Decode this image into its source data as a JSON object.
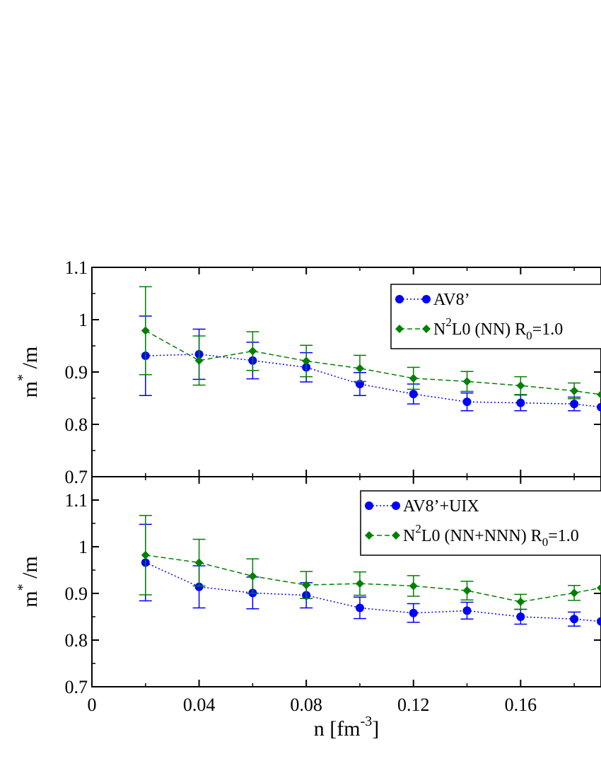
{
  "chart_data": [
    {
      "type": "scatter",
      "panel": "top",
      "xlim": [
        0,
        0.19
      ],
      "ylim": [
        0.7,
        1.1
      ],
      "yticks": [
        0.7,
        0.8,
        0.9,
        1.0,
        1.1
      ],
      "ytick_labels": [
        "0.7",
        "0.8",
        "0.9",
        "1",
        "1.1"
      ],
      "ylabel": {
        "base": "m",
        "sup": "*",
        "rest": "/m"
      },
      "legend_position": "top-right",
      "series": [
        {
          "name": "AV8’",
          "color": "#0000ff",
          "marker": "circle",
          "line": "dotted",
          "x": [
            0.02,
            0.04,
            0.06,
            0.08,
            0.1,
            0.12,
            0.14,
            0.16,
            0.18,
            0.19
          ],
          "y": [
            0.931,
            0.934,
            0.922,
            0.909,
            0.877,
            0.858,
            0.843,
            0.841,
            0.839,
            0.833
          ],
          "err": [
            0.076,
            0.048,
            0.035,
            0.028,
            0.022,
            0.019,
            0.017,
            0.015,
            0.013,
            null
          ]
        },
        {
          "name_parts": [
            "N",
            "2",
            "L0 (NN) R",
            "0",
            "=1.0"
          ],
          "color": "#008000",
          "marker": "diamond",
          "line": "dashed",
          "x": [
            0.02,
            0.04,
            0.06,
            0.08,
            0.1,
            0.12,
            0.14,
            0.16,
            0.18,
            0.19
          ],
          "y": [
            0.979,
            0.922,
            0.94,
            0.921,
            0.907,
            0.888,
            0.882,
            0.874,
            0.864,
            0.857
          ],
          "err": [
            0.084,
            0.047,
            0.037,
            0.03,
            0.025,
            0.021,
            0.019,
            0.017,
            0.015,
            null
          ]
        }
      ]
    },
    {
      "type": "scatter",
      "panel": "bottom",
      "xlim": [
        0,
        0.19
      ],
      "ylim": [
        0.7,
        1.15
      ],
      "xticks": [
        0,
        0.04,
        0.08,
        0.12,
        0.16
      ],
      "xtick_labels": [
        "0",
        "0.04",
        "0.08",
        "0.12",
        "0.16"
      ],
      "yticks": [
        0.7,
        0.8,
        0.9,
        1.0,
        1.1
      ],
      "ytick_labels": [
        "0.7",
        "0.8",
        "0.9",
        "1",
        "1.1"
      ],
      "ylabel": {
        "base": "m",
        "sup": "*",
        "rest": "/m"
      },
      "xlabel": {
        "base": "n [fm",
        "sup": "-3",
        "rest": "]"
      },
      "legend_position": "top-right",
      "series": [
        {
          "name": "AV8’+UIX",
          "color": "#0000ff",
          "marker": "circle",
          "line": "dotted",
          "x": [
            0.02,
            0.04,
            0.06,
            0.08,
            0.1,
            0.12,
            0.14,
            0.16,
            0.18,
            0.19
          ],
          "y": [
            0.966,
            0.914,
            0.901,
            0.896,
            0.869,
            0.858,
            0.863,
            0.85,
            0.845,
            0.84
          ],
          "err": [
            0.082,
            0.045,
            0.034,
            0.027,
            0.023,
            0.02,
            0.018,
            0.016,
            0.015,
            null
          ]
        },
        {
          "name_parts": [
            "N",
            "2",
            "L0 (NN+NNN) R",
            "0",
            "=1.0"
          ],
          "color": "#008000",
          "marker": "diamond",
          "line": "dashed",
          "x": [
            0.02,
            0.04,
            0.06,
            0.08,
            0.1,
            0.12,
            0.14,
            0.16,
            0.18,
            0.19
          ],
          "y": [
            0.982,
            0.966,
            0.937,
            0.918,
            0.921,
            0.916,
            0.906,
            0.882,
            0.901,
            0.912
          ],
          "err": [
            0.085,
            0.05,
            0.037,
            0.029,
            0.025,
            0.022,
            0.02,
            0.016,
            0.016,
            null
          ]
        }
      ]
    }
  ]
}
